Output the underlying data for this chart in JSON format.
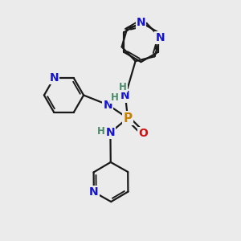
{
  "bg_color": "#ebebeb",
  "atom_colors": {
    "C": "#1a1a1a",
    "N": "#1414cc",
    "P": "#c88000",
    "O": "#cc1111",
    "H": "#4a8a6a"
  },
  "bond_color": "#1a1a1a",
  "bond_width": 1.6,
  "font_size_atom": 10,
  "font_size_H": 8.5,
  "fig_w": 3.0,
  "fig_h": 3.0,
  "dpi": 100
}
